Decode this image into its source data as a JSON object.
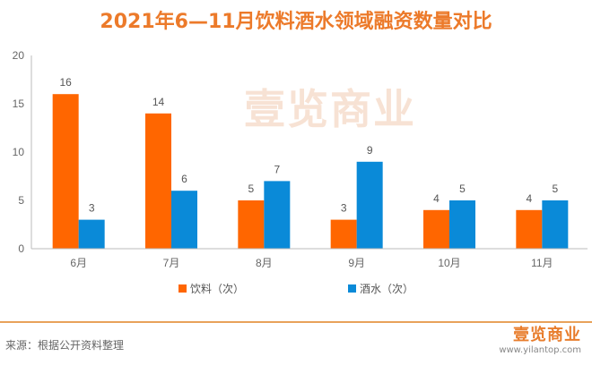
{
  "title": "2021年6—11月饮料酒水领域融资数量对比",
  "watermark": "壹览商业",
  "chart_data": {
    "type": "bar",
    "title": "2021年6—11月饮料酒水领域融资数量对比",
    "categories": [
      "6月",
      "7月",
      "8月",
      "9月",
      "10月",
      "11月"
    ],
    "series": [
      {
        "name": "饮料（次）",
        "color": "#ff6600",
        "values": [
          16,
          14,
          5,
          3,
          4,
          4
        ]
      },
      {
        "name": "酒水（次）",
        "color": "#0a8ad8",
        "values": [
          3,
          6,
          7,
          9,
          5,
          5
        ]
      }
    ],
    "yticks": [
      0,
      5,
      10,
      15,
      20
    ],
    "ylim": [
      0,
      20
    ],
    "xlabel": "",
    "ylabel": "",
    "legend": "bottom",
    "grid": false
  },
  "footer": {
    "source": "来源：根据公开资料整理",
    "logo": "壹览商业",
    "url": "www.yilantop.com"
  }
}
